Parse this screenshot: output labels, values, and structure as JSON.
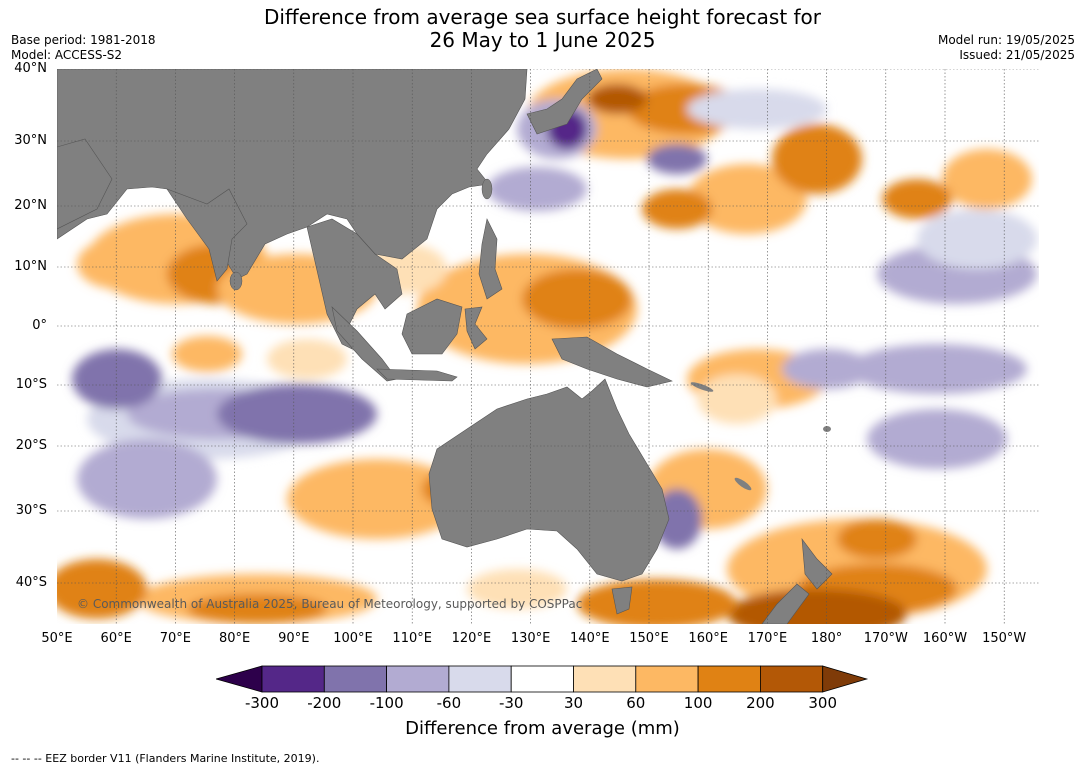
{
  "header": {
    "title_line1": "Difference from average sea surface height forecast for",
    "title_line2": "26 May to 1 June 2025",
    "base_period": "Base period: 1981-2018",
    "model": "Model: ACCESS-S2",
    "model_run": "Model run: 19/05/2025",
    "issued": "Issued: 21/05/2025"
  },
  "map": {
    "latitude_labels": [
      "40°N",
      "30°N",
      "20°N",
      "10°N",
      "0°",
      "10°S",
      "20°S",
      "30°S",
      "40°S"
    ],
    "longitude_labels": [
      "50°E",
      "60°E",
      "70°E",
      "80°E",
      "90°E",
      "100°E",
      "110°E",
      "120°E",
      "130°E",
      "140°E",
      "150°E",
      "160°E",
      "170°E",
      "180°",
      "170°W",
      "160°W",
      "150°W"
    ],
    "copyright": "© Commonwealth of Australia 2025, Bureau of Meteorology, supported by COSPPac",
    "land_color": "#808080"
  },
  "colorbar": {
    "title": "Difference from average (mm)",
    "tick_labels": [
      "-300",
      "-200",
      "-100",
      "-60",
      "-30",
      "30",
      "60",
      "100",
      "200",
      "300"
    ],
    "colors": [
      "#2d004b",
      "#542788",
      "#8073ac",
      "#b2abd2",
      "#d8daeb",
      "#ffffff",
      "#fee0b6",
      "#fdb863",
      "#e08214",
      "#b35806",
      "#7f3b08"
    ]
  },
  "footnote": "--  --  -- EEZ border V11 (Flanders Marine Institute, 2019)."
}
